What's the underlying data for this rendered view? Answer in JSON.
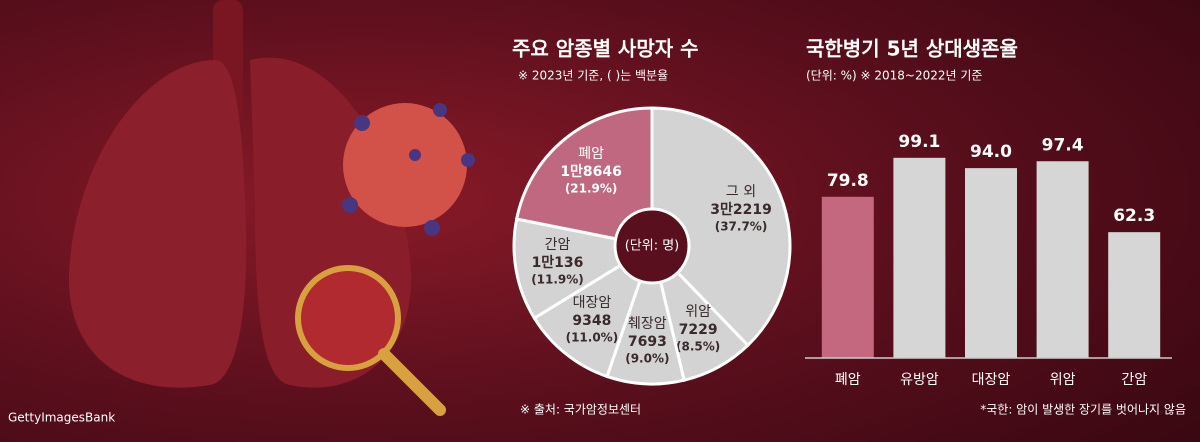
{
  "image_credit": "GettyImagesBank",
  "chart_data": [
    {
      "type": "donut",
      "title": "주요 암종별 사망자 수",
      "subtitle": "※ 2023년 기준, ( )는 백분율",
      "center_label": "(단위: 명)",
      "categories": [
        "그 외",
        "위암",
        "췌장암",
        "대장암",
        "간암",
        "폐암"
      ],
      "values": [
        32219,
        7229,
        7693,
        9348,
        10136,
        18646
      ],
      "value_labels": [
        "3만2219",
        "7229",
        "7693",
        "9348",
        "1만136",
        "1만8646"
      ],
      "percent_labels": [
        "(37.7%)",
        "(8.5%)",
        "(9.0%)",
        "(11.0%)",
        "(11.9%)",
        "(21.9%)"
      ],
      "colors": [
        "#d3d3d3",
        "#d3d3d3",
        "#d3d3d3",
        "#d3d3d3",
        "#d3d3d3",
        "#c0687f"
      ],
      "source": "※ 출처: 국가암정보센터"
    },
    {
      "type": "bar",
      "title": "국한병기 5년 상대생존율",
      "subtitle": "(단위: %) ※ 2018~2022년 기준",
      "categories": [
        "폐암",
        "유방암",
        "대장암",
        "위암",
        "간암"
      ],
      "values": [
        79.8,
        99.1,
        94.0,
        97.4,
        62.3
      ],
      "value_labels": [
        "79.8",
        "99.1",
        "94.0",
        "97.4",
        "62.3"
      ],
      "colors": [
        "#c4687f",
        "#d6d6d6",
        "#d6d6d6",
        "#d6d6d6",
        "#d6d6d6"
      ],
      "ylim": [
        0,
        100
      ],
      "footnote": "*국한: 암이 발생한 장기를 벗어나지 않음"
    }
  ]
}
